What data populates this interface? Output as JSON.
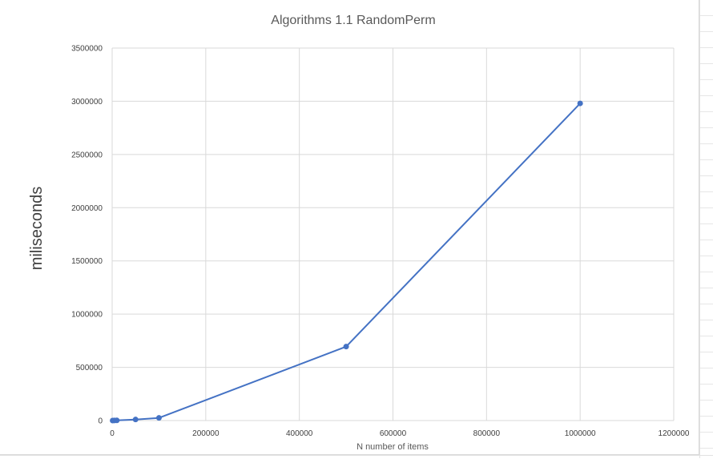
{
  "chart_data": {
    "type": "line",
    "title": "Algorithms 1.1 RandomPerm",
    "xlabel": "N number of items",
    "ylabel": "miliseconds",
    "xlim": [
      0,
      1200000
    ],
    "ylim": [
      0,
      3500000
    ],
    "x_ticks": [
      0,
      200000,
      400000,
      600000,
      800000,
      1000000,
      1200000
    ],
    "y_ticks": [
      0,
      500000,
      1000000,
      1500000,
      2000000,
      2500000,
      3000000,
      3500000
    ],
    "grid": true,
    "legend": "none",
    "series": [
      {
        "color": "#4472c4",
        "x": [
          1000,
          5000,
          10000,
          50000,
          100000,
          500000,
          1000000
        ],
        "y": [
          100,
          500,
          1500,
          10000,
          25000,
          695000,
          2980000
        ]
      }
    ]
  }
}
